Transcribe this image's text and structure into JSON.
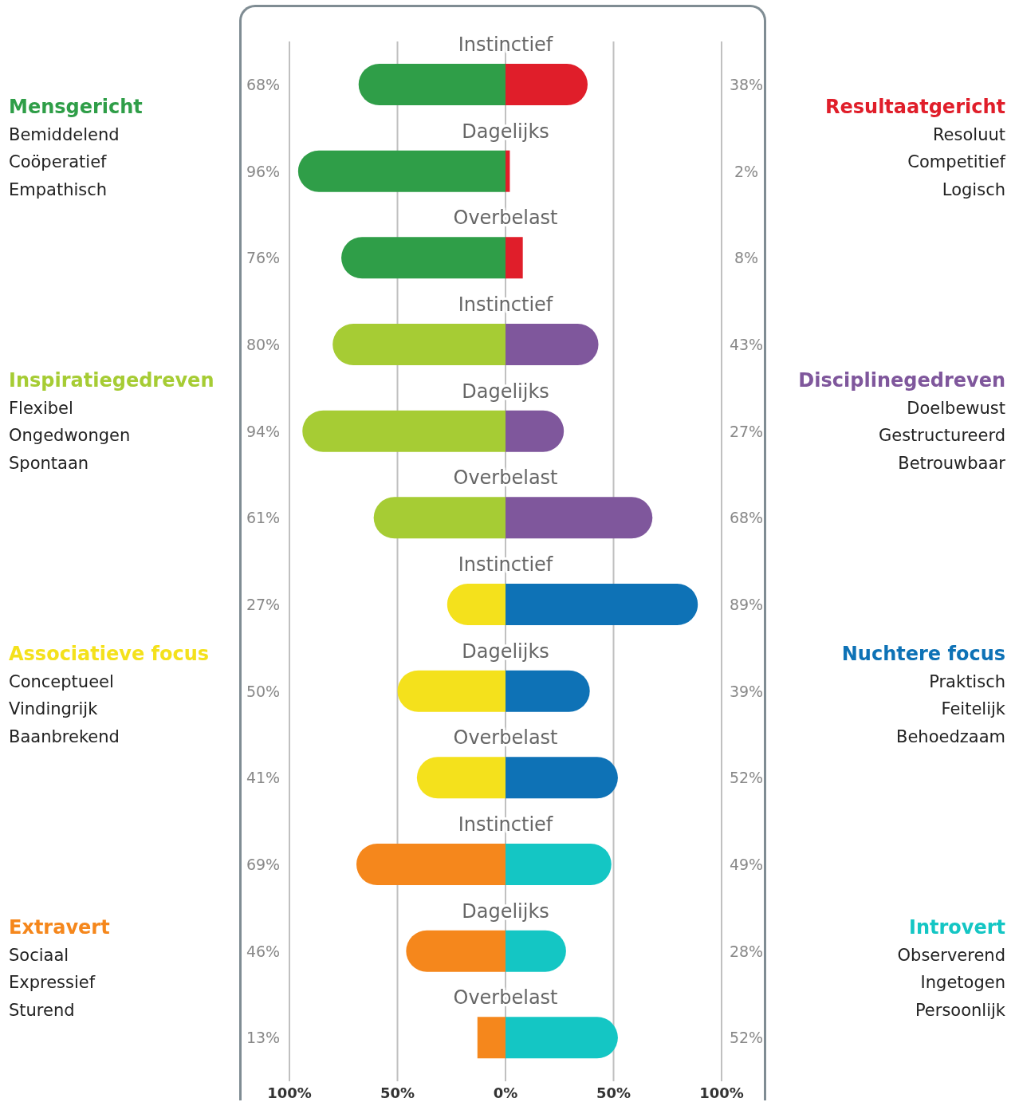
{
  "chart_data": {
    "type": "bar",
    "orientation": "horizontal",
    "categories": [
      "Instinctief",
      "Dagelijks",
      "Overbelast",
      "Instinctief",
      "Dagelijks",
      "Overbelast",
      "Instinctief",
      "Dagelijks",
      "Overbelast",
      "Instinctief",
      "Dagelijks",
      "Overbelast"
    ],
    "series": [
      {
        "values": [
          68,
          96,
          76,
          80,
          94,
          61,
          27,
          50,
          41,
          69,
          46,
          13
        ],
        "base": [
          -68,
          -96,
          -76,
          -80,
          -94,
          -61,
          -27,
          -50,
          -41,
          -69,
          -46,
          -13
        ],
        "value_labels": [
          "68%",
          "96%",
          "76%",
          "80%",
          "94%",
          "61%",
          "27%",
          "50%",
          "41%",
          "69%",
          "46%",
          "13%"
        ],
        "colors": [
          "#2f9e48",
          "#2f9e48",
          "#2f9e48",
          "#a6cc34",
          "#a6cc34",
          "#a6cc34",
          "#f4e11c",
          "#f4e11c",
          "#f4e11c",
          "#f5871c",
          "#f5871c",
          "#f5871c"
        ]
      },
      {
        "values": [
          38,
          2,
          8,
          43,
          27,
          68,
          89,
          39,
          52,
          49,
          28,
          52
        ],
        "value_labels": [
          "38%",
          "2%",
          "8%",
          "43%",
          "27%",
          "68%",
          "89%",
          "39%",
          "52%",
          "49%",
          "28%",
          "52%"
        ],
        "colors": [
          "#e01e2a",
          "#e01e2a",
          "#e01e2a",
          "#7f579c",
          "#7f579c",
          "#7f579c",
          "#0e72b6",
          "#0e72b6",
          "#0e72b6",
          "#14c6c4",
          "#14c6c4",
          "#14c6c4"
        ]
      }
    ],
    "xlim": [
      -100,
      100
    ],
    "xticks": [
      {
        "value": -100,
        "label": "100%"
      },
      {
        "value": -50,
        "label": "50%"
      },
      {
        "value": 0,
        "label": "0%"
      },
      {
        "value": 50,
        "label": "50%"
      },
      {
        "value": 100,
        "label": "100%"
      }
    ],
    "grid": "x",
    "annotations": [
      "Mensgericht",
      "Bemiddelend",
      "Coöperatief",
      "Empathisch",
      "Resultaatgericht",
      "Resoluut",
      "Competitief",
      "Logisch",
      "Inspiratiegedreven",
      "Flexibel",
      "Ongedwongen",
      "Spontaan",
      "Disciplinegedreven",
      "Doelbewust",
      "Gestructureerd",
      "Betrouwbaar",
      "Associatieve focus",
      "Conceptueel",
      "Vindingrijk",
      "Baanbrekend",
      "Nuchtere focus",
      "Praktisch",
      "Feitelijk",
      "Behoedzaam",
      "Extravert",
      "Sociaal",
      "Expressief",
      "Sturend",
      "Introvert",
      "Observerend",
      "Ingetogen",
      "Persoonlijk"
    ]
  }
}
